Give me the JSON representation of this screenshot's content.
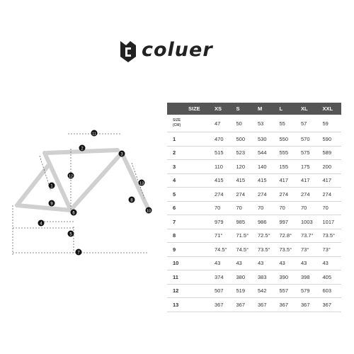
{
  "brand": {
    "name": "coluer"
  },
  "table": {
    "headers": [
      "SIZE",
      "XS",
      "S",
      "M",
      "L",
      "XL",
      "XXL"
    ],
    "size_cm": {
      "label_top": "SIZE",
      "label_bottom": "(CM)",
      "values": [
        "47",
        "50",
        "53",
        "55",
        "57",
        "59"
      ]
    },
    "rows": [
      {
        "id": "1",
        "values": [
          "470",
          "500",
          "530",
          "550",
          "570",
          "590"
        ]
      },
      {
        "id": "2",
        "values": [
          "515",
          "523",
          "544",
          "555",
          "575",
          "589"
        ]
      },
      {
        "id": "3",
        "values": [
          "110",
          "120",
          "140",
          "155",
          "175",
          "200"
        ]
      },
      {
        "id": "4",
        "values": [
          "415",
          "415",
          "415",
          "417",
          "417",
          "417"
        ]
      },
      {
        "id": "5",
        "values": [
          "274",
          "274",
          "274",
          "274",
          "274",
          "274"
        ]
      },
      {
        "id": "6",
        "values": [
          "70",
          "70",
          "70",
          "70",
          "70",
          "70"
        ]
      },
      {
        "id": "7",
        "values": [
          "979",
          "985",
          "986",
          "997",
          "1003",
          "1017"
        ]
      },
      {
        "id": "8",
        "values": [
          "71°",
          "71.5°",
          "72.5°",
          "72.8°",
          "73.7°",
          "73.5°"
        ]
      },
      {
        "id": "9",
        "values": [
          "74.5°",
          "74.5°",
          "73.5°",
          "73.5°",
          "73°",
          "73°"
        ]
      },
      {
        "id": "10",
        "values": [
          "43",
          "43",
          "43",
          "43",
          "43",
          "43"
        ]
      },
      {
        "id": "11",
        "values": [
          "374",
          "380",
          "383",
          "390",
          "398",
          "405"
        ]
      },
      {
        "id": "12",
        "values": [
          "507",
          "519",
          "542",
          "557",
          "579",
          "603"
        ]
      },
      {
        "id": "13",
        "values": [
          "367",
          "367",
          "367",
          "367",
          "367",
          "367"
        ]
      }
    ]
  },
  "diagram": {
    "markers": [
      "1",
      "2",
      "3",
      "4",
      "5",
      "6",
      "7",
      "8",
      "9",
      "10",
      "11",
      "12",
      "13"
    ]
  }
}
